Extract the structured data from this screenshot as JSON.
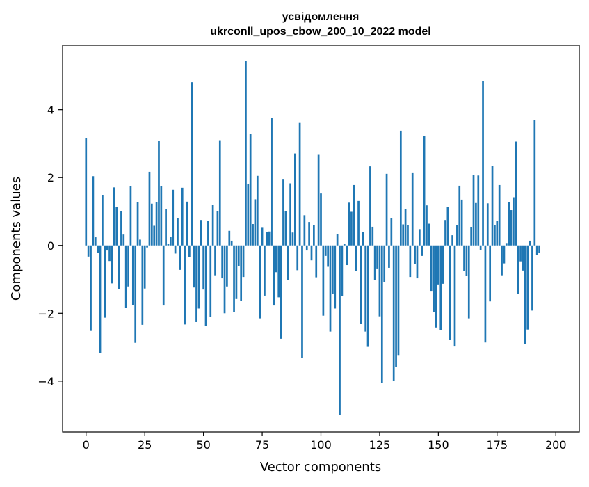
{
  "chart_data": {
    "type": "bar",
    "title_line1": "усвідомлення",
    "title_line2": "ukrconll_upos_cbow_200_10_2022 model",
    "xlabel": "Vector components",
    "ylabel": "Components values",
    "xlim": [
      -10,
      210
    ],
    "ylim": [
      -5.5,
      5.9
    ],
    "xticks": [
      0,
      25,
      50,
      75,
      100,
      125,
      150,
      175,
      200
    ],
    "yticks": [
      -4,
      -2,
      0,
      2,
      4
    ],
    "ytick_labels": [
      "−4",
      "−2",
      "0",
      "2",
      "4"
    ],
    "bar_color": "#1f77b4",
    "grid": false,
    "values": [
      3.17,
      -0.33,
      -2.52,
      2.04,
      0.24,
      -0.21,
      -3.18,
      1.48,
      -2.13,
      -0.15,
      -0.46,
      -1.12,
      1.71,
      1.14,
      -1.29,
      1.01,
      0.32,
      -1.83,
      -1.21,
      1.74,
      -1.75,
      -2.87,
      1.28,
      0.17,
      -2.34,
      -1.27,
      -0.06,
      2.17,
      1.23,
      0.58,
      1.28,
      3.08,
      1.74,
      -1.77,
      1.08,
      0.05,
      0.25,
      1.64,
      -0.24,
      0.8,
      -0.72,
      1.7,
      -2.33,
      1.29,
      -0.34,
      4.81,
      -1.24,
      -2.26,
      -1.86,
      0.75,
      -1.3,
      -2.37,
      0.72,
      -2.1,
      1.19,
      -0.88,
      1.01,
      3.1,
      -0.97,
      -2.0,
      -1.21,
      0.43,
      0.14,
      -1.97,
      -1.58,
      -0.61,
      -1.63,
      -0.93,
      5.44,
      1.82,
      3.28,
      0.63,
      1.36,
      2.05,
      -2.15,
      0.52,
      -1.48,
      0.39,
      0.41,
      3.75,
      -1.77,
      -0.79,
      -1.53,
      -2.75,
      1.94,
      1.02,
      -1.03,
      1.83,
      0.38,
      2.71,
      -0.73,
      3.61,
      -3.32,
      0.89,
      -0.15,
      0.69,
      -0.44,
      0.61,
      -0.94,
      2.67,
      1.53,
      -2.07,
      -0.31,
      -0.63,
      -2.54,
      -1.42,
      -1.86,
      0.33,
      -5.0,
      -1.5,
      0.05,
      -0.58,
      1.26,
      0.99,
      1.78,
      -0.75,
      1.31,
      -2.31,
      0.39,
      -2.54,
      -2.99,
      2.33,
      0.55,
      -1.03,
      -0.68,
      -2.09,
      -4.05,
      -1.09,
      2.11,
      -0.66,
      0.8,
      -4.0,
      -3.58,
      -3.23,
      3.38,
      0.62,
      1.07,
      0.6,
      -0.93,
      2.15,
      -0.54,
      -0.97,
      0.48,
      -0.31,
      3.22,
      1.18,
      0.64,
      -1.34,
      -1.96,
      -2.42,
      -1.15,
      -2.49,
      -1.13,
      0.75,
      1.13,
      -2.78,
      0.3,
      -2.98,
      0.59,
      1.76,
      1.35,
      -0.76,
      -0.9,
      -2.15,
      0.53,
      2.08,
      1.25,
      2.06,
      -0.13,
      4.85,
      -2.86,
      1.24,
      -1.65,
      2.35,
      0.6,
      0.73,
      1.78,
      -0.88,
      -0.53,
      0.07,
      1.28,
      1.04,
      1.42,
      3.06,
      -1.42,
      -0.47,
      -0.74,
      -2.91,
      -2.48,
      0.14,
      -1.92,
      3.69,
      -0.29,
      -0.21
    ]
  }
}
